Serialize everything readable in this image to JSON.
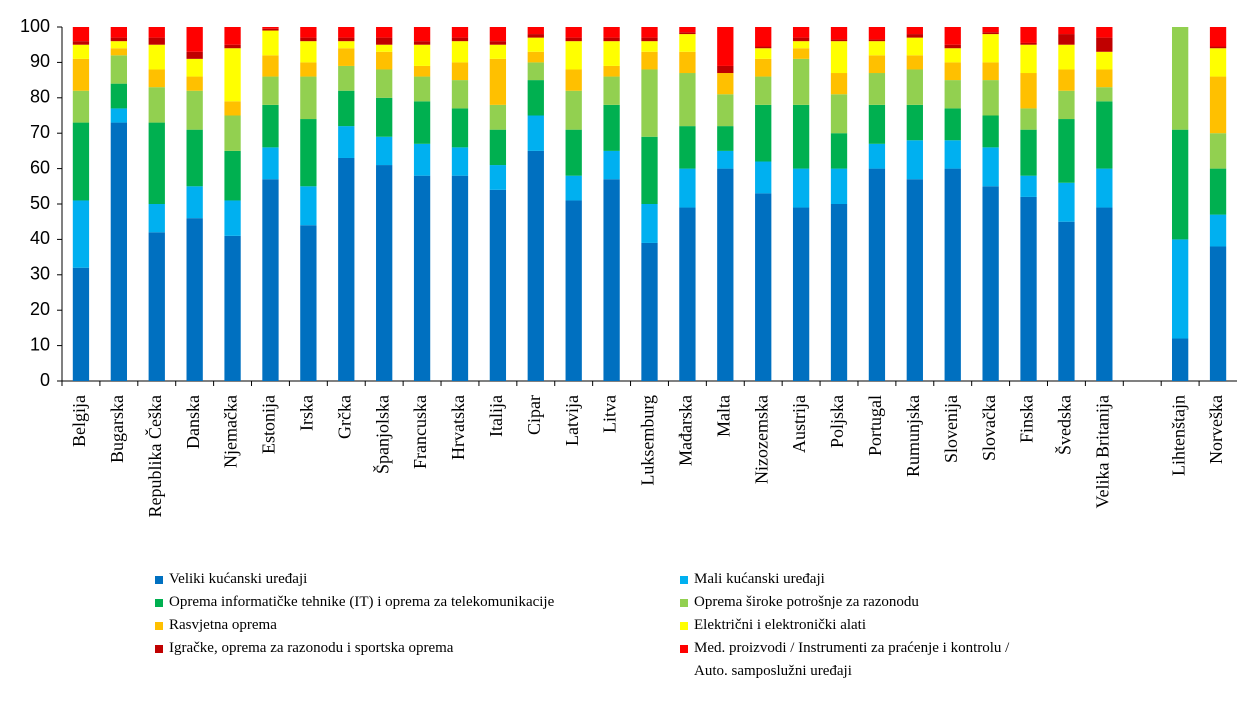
{
  "chart_data": {
    "type": "stacked_bar",
    "categories": [
      "Belgija",
      "Bugarska",
      "Republika Češka",
      "Danska",
      "Njemačka",
      "Estonija",
      "Irska",
      "Grčka",
      "Španjolska",
      "Francuska",
      "Hrvatska",
      "Italija",
      "Cipar",
      "Latvija",
      "Litva",
      "Luksemburg",
      "Mađarska",
      "Malta",
      "Nizozemska",
      "Austrija",
      "Poljska",
      "Portugal",
      "Rumunjska",
      "Slovenija",
      "Slovačka",
      "Finska",
      "Švedska",
      "Velika Britanija",
      null,
      "Lihtenštajn",
      "Norveška"
    ],
    "series": [
      {
        "name": "Veliki kućanski uređaji",
        "color": "#0070c0",
        "values": [
          32,
          73,
          42,
          46,
          41,
          57,
          44,
          63,
          61,
          58,
          58,
          54,
          65,
          51,
          57,
          39,
          49,
          60,
          53,
          49,
          50,
          60,
          57,
          60,
          55,
          52,
          45,
          49,
          null,
          12,
          38
        ]
      },
      {
        "name": "Mali kućanski uređaji",
        "color": "#00b0f0",
        "values": [
          19,
          4,
          8,
          9,
          10,
          9,
          11,
          9,
          8,
          9,
          8,
          7,
          10,
          7,
          8,
          11,
          11,
          5,
          9,
          11,
          10,
          7,
          11,
          8,
          11,
          6,
          11,
          11,
          null,
          28,
          9
        ]
      },
      {
        "name": "Oprema informatičke tehnike (IT) i oprema za telekomunikacije",
        "color": "#00b050",
        "values": [
          22,
          7,
          23,
          16,
          14,
          12,
          19,
          10,
          11,
          12,
          11,
          10,
          10,
          13,
          13,
          19,
          12,
          7,
          16,
          18,
          10,
          11,
          10,
          9,
          9,
          13,
          18,
          19,
          null,
          31,
          13
        ]
      },
      {
        "name": "Oprema široke potrošnje za razonodu",
        "color": "#92d050",
        "values": [
          9,
          8,
          10,
          11,
          10,
          8,
          12,
          7,
          8,
          7,
          8,
          7,
          5,
          11,
          8,
          19,
          15,
          9,
          8,
          13,
          11,
          9,
          10,
          8,
          10,
          6,
          8,
          4,
          null,
          29,
          10
        ]
      },
      {
        "name": "Rasvjetna oprema",
        "color": "#ffc000",
        "values": [
          9,
          2,
          5,
          4,
          4,
          6,
          4,
          5,
          5,
          3,
          5,
          13,
          3,
          6,
          3,
          5,
          6,
          6,
          5,
          3,
          6,
          5,
          4,
          5,
          5,
          10,
          6,
          5,
          null,
          0,
          16
        ]
      },
      {
        "name": "Električni i elektronički alati",
        "color": "#ffff00",
        "values": [
          4,
          2,
          7,
          5,
          15,
          7,
          6,
          2,
          2,
          6,
          6,
          4,
          4,
          8,
          7,
          3,
          5,
          0,
          3,
          2,
          9,
          4,
          5,
          4,
          8,
          8,
          7,
          5,
          null,
          0,
          8
        ]
      },
      {
        "name": "Igračke, oprema za razonodu i sportska oprema",
        "color": "#c00000",
        "values": [
          1,
          1,
          2,
          2,
          1,
          0.5,
          1,
          1,
          2,
          1,
          1,
          1,
          1,
          1,
          1,
          1,
          0.5,
          2,
          0.5,
          1,
          0.5,
          0.5,
          1,
          1,
          0.5,
          0.5,
          3,
          4,
          null,
          0,
          0.5
        ]
      },
      {
        "name": "Med. proizvodi / Instrumenti za praćenje i kontrolu /\nAuto. samposlužni uređaji",
        "color": "#ff0000",
        "values": [
          4,
          3,
          3,
          7,
          5,
          0.5,
          3,
          3,
          3,
          4,
          3,
          4,
          2,
          3,
          3,
          3,
          1.5,
          11,
          5.5,
          3,
          3.5,
          3.5,
          2,
          5,
          1.5,
          4.5,
          2,
          3,
          null,
          0,
          5.5
        ]
      }
    ],
    "ylim": [
      0,
      100
    ],
    "yticks": [
      0,
      10,
      20,
      30,
      40,
      50,
      60,
      70,
      80,
      90,
      100
    ],
    "grid": false
  }
}
